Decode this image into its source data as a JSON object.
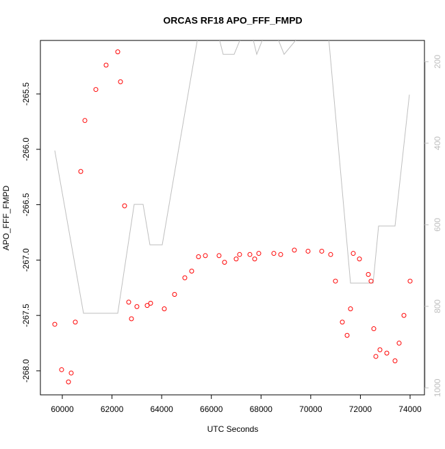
{
  "chart_data": {
    "type": "scatter",
    "title": "ORCAS RF18 APO_FFF_FMPD",
    "x_label": "UTC Seconds",
    "y_label": "APO_FFF_FMPD",
    "xlim": [
      59118,
      74579
    ],
    "ylim": [
      -268.217,
      -265.017
    ],
    "y2lim": [
      1017,
      148
    ],
    "xticks": [
      60000,
      62000,
      64000,
      66000,
      68000,
      70000,
      72000,
      74000
    ],
    "yticks": [
      {
        "value": -268,
        "label": "-268.0"
      },
      -267.5,
      {
        "value": -267,
        "label": "-267.0"
      },
      -266.5,
      {
        "value": -266,
        "label": "-266.0"
      },
      -265.5
    ],
    "y2ticks": [
      200,
      400,
      600,
      800,
      1000
    ],
    "y2_color": "#bebebe",
    "series": [
      {
        "type": "scatter",
        "color": "#ff0000",
        "marker": "open-circle",
        "x": [
          59697,
          59972,
          60248,
          60358,
          60523,
          60743,
          60909,
          61350,
          61763,
          62232,
          62342,
          62507,
          62673,
          62783,
          63003,
          63417,
          63555,
          64106,
          64519,
          64932,
          65208,
          65483,
          65759,
          66310,
          66531,
          66999,
          67137,
          67551,
          67744,
          67909,
          68515,
          68791,
          69342,
          69893,
          70444,
          70803,
          70996,
          71272,
          71465,
          71602,
          71713,
          71961,
          72319,
          72429,
          72539,
          72622,
          72787,
          73063,
          73394,
          73559,
          73752,
          74000
        ],
        "values": [
          -267.58,
          -267.99,
          -268.1,
          -268.02,
          -267.56,
          -266.2,
          -265.74,
          -265.46,
          -265.24,
          -265.12,
          -265.39,
          -266.51,
          -267.38,
          -267.53,
          -267.42,
          -267.41,
          -267.39,
          -267.44,
          -267.31,
          -267.16,
          -267.1,
          -266.97,
          -266.96,
          -266.96,
          -267.02,
          -266.99,
          -266.95,
          -266.95,
          -266.99,
          -266.94,
          -266.94,
          -266.95,
          -266.91,
          -266.92,
          -266.92,
          -266.95,
          -267.19,
          -267.56,
          -267.68,
          -267.44,
          -266.94,
          -266.99,
          -267.13,
          -267.19,
          -267.62,
          -267.87,
          -267.81,
          -267.84,
          -267.91,
          -267.75,
          -267.5,
          -267.19
        ]
      },
      {
        "type": "line",
        "axis": "y2",
        "color": "#bebebe",
        "x": [
          59697,
          60854,
          62232,
          62893,
          63252,
          63527,
          64023,
          65456,
          66300,
          66476,
          66917,
          67200,
          67661,
          67827,
          68100,
          68653,
          68929,
          69500,
          70720,
          71602,
          72512,
          72732,
          73394,
          73972
        ],
        "values": [
          418,
          817,
          817,
          550,
          550,
          649,
          649,
          140,
          140,
          182,
          182,
          140,
          140,
          182,
          140,
          140,
          182,
          140,
          140,
          743,
          743,
          603,
          603,
          281
        ]
      }
    ]
  }
}
